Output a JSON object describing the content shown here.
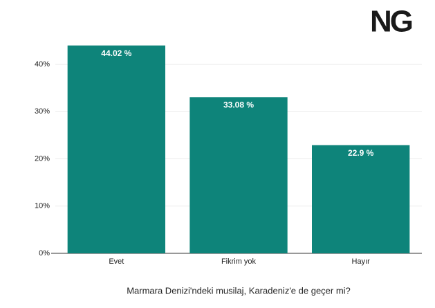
{
  "logo": "NG",
  "chart_data": {
    "type": "bar",
    "x_label": "Marmara Denizi'ndeki musilaj, Karadeniz'e de geçer mi?",
    "categories": [
      "Evet",
      "Fikrim yok",
      "Hayır"
    ],
    "values": [
      44.02,
      33.08,
      22.9
    ],
    "value_labels": [
      "44.02 %",
      "33.08 %",
      "22.9 %"
    ],
    "color": "#0e847a",
    "ylim": [
      0,
      45
    ],
    "yticks": [
      {
        "value": 0,
        "label": "0%"
      },
      {
        "value": 10,
        "label": "10%"
      },
      {
        "value": 20,
        "label": "20%"
      },
      {
        "value": 30,
        "label": "30%"
      },
      {
        "value": 40,
        "label": "40%"
      }
    ],
    "grid": true
  }
}
